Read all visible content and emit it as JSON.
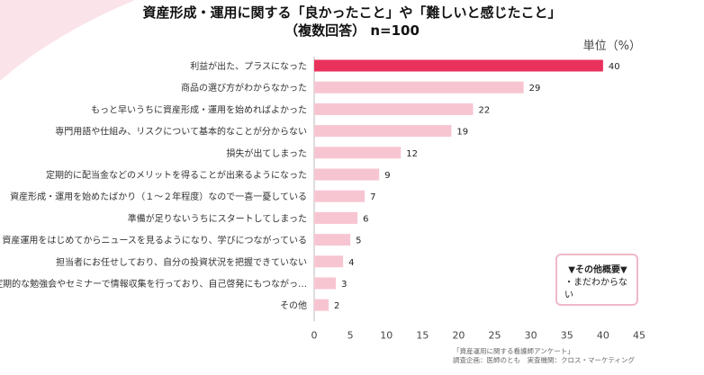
{
  "title": {
    "line1": "資産形成・運用に関する「良かったこと」や「難しいと感じたこと」",
    "line2": "（複数回答） n=100"
  },
  "unit_label": "単位（%）",
  "note": {
    "title": "▼その他概要▼",
    "item": "・まだわからない"
  },
  "source": {
    "line1": "「資産運用に関する看護師アンケート」",
    "line2": "調査企画：医師のとも　実査機関：クロス・マーケティング"
  },
  "colors": {
    "highlight": "#e8325c",
    "bar": "#f7c5d1",
    "corner": "#fbe3ea",
    "axis": "#bbbbbb",
    "note_border": "#f0b8c8"
  },
  "chart_data": {
    "type": "bar",
    "orientation": "horizontal",
    "categories": [
      "利益が出た、プラスになった",
      "商品の選び方がわからなかった",
      "もっと早いうちに資産形成・運用を始めればよかった",
      "専門用語や仕組み、リスクについて基本的なことが分からない",
      "損失が出てしまった",
      "定期的に配当金などのメリットを得ることが出来るようになった",
      "資産形成・運用を始めたばかり（１～２年程度）なので一喜一憂している",
      "準備が足りないうちにスタートしてしまった",
      "資産運用をはじめてからニュースを見るようになり、学びにつながっている",
      "担当者にお任せしており、自分の投資状況を把握できていない",
      "定期的な勉強会やセミナーで情報収集を行っており、自己啓発にもつながっ…",
      "その他"
    ],
    "values": [
      40,
      29,
      22,
      19,
      12,
      9,
      7,
      6,
      5,
      4,
      3,
      2
    ],
    "xlim": [
      0,
      45
    ],
    "xticks": [
      "0",
      "5",
      "10",
      "15",
      "20",
      "25",
      "30",
      "35",
      "40",
      "45"
    ],
    "highlight_index": 0
  }
}
